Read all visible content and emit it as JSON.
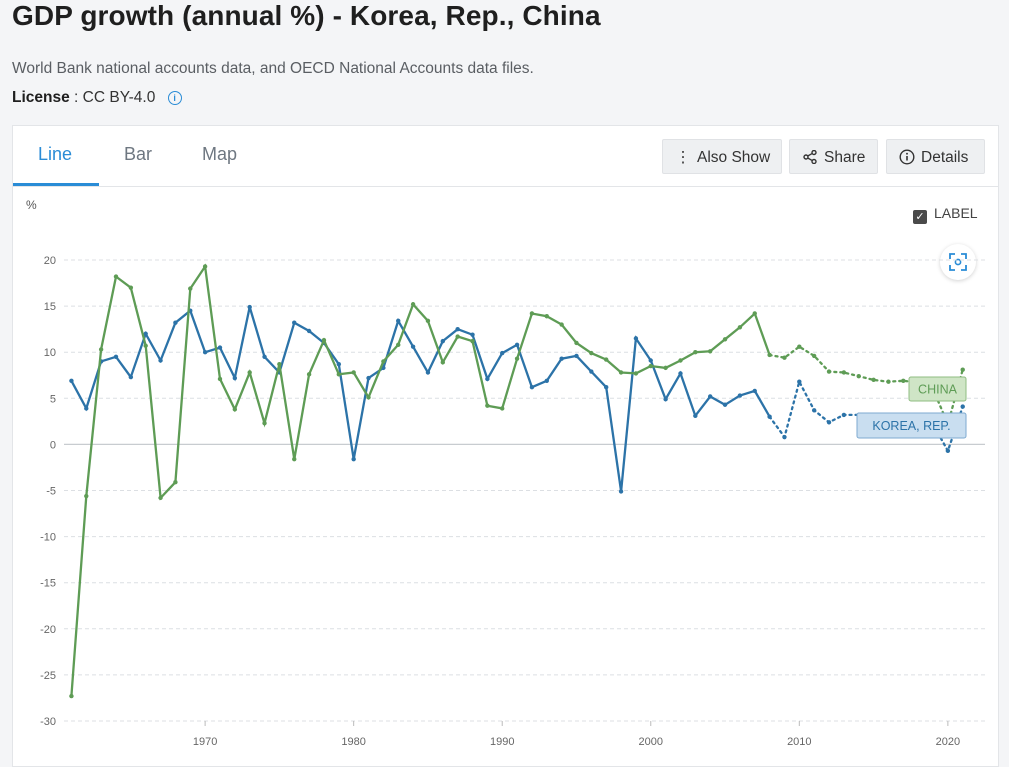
{
  "header": {
    "title": "GDP growth (annual %) - Korea, Rep., China",
    "subtitle": "World Bank national accounts data, and OECD National Accounts data files.",
    "license_label": "License",
    "license_value": ": CC BY-4.0"
  },
  "tabs": [
    {
      "label": "Line",
      "active": true
    },
    {
      "label": "Bar",
      "active": false
    },
    {
      "label": "Map",
      "active": false
    }
  ],
  "toolbar": {
    "also_show": "Also Show",
    "share": "Share",
    "details": "Details",
    "label_toggle": "LABEL",
    "label_checked": true
  },
  "icons": [
    "vertical-dots-icon",
    "share-icon",
    "info-circle-icon",
    "checkbox-icon",
    "zoom-fit-icon"
  ],
  "colors": {
    "accent": "#2a8cd6",
    "korea": "#2c73a8",
    "china": "#5e9c55"
  },
  "chart_data": {
    "type": "line",
    "ylabel": "%",
    "ylim": [
      -30,
      20
    ],
    "xlim": [
      1960.5,
      2022.5
    ],
    "yticks": [
      20,
      15,
      10,
      5,
      0,
      -5,
      -10,
      -15,
      -20,
      -25,
      -30
    ],
    "xticks": [
      1970,
      1980,
      1990,
      2000,
      2010,
      2020
    ],
    "grid": true,
    "series": [
      {
        "name": "KOREA, REP.",
        "x": [
          1961,
          1962,
          1963,
          1964,
          1965,
          1966,
          1967,
          1968,
          1969,
          1970,
          1971,
          1972,
          1973,
          1974,
          1975,
          1976,
          1977,
          1978,
          1979,
          1980,
          1981,
          1982,
          1983,
          1984,
          1985,
          1986,
          1987,
          1988,
          1989,
          1990,
          1991,
          1992,
          1993,
          1994,
          1995,
          1996,
          1997,
          1998,
          1999,
          2000,
          2001,
          2002,
          2003,
          2004,
          2005,
          2006,
          2007,
          2008,
          2009,
          2010,
          2011,
          2012,
          2013,
          2014,
          2015,
          2016,
          2017,
          2018,
          2019,
          2020,
          2021
        ],
        "values": [
          6.9,
          3.9,
          9.0,
          9.5,
          7.3,
          12.0,
          9.1,
          13.2,
          14.5,
          10.0,
          10.5,
          7.2,
          14.9,
          9.5,
          7.8,
          13.2,
          12.3,
          11.0,
          8.7,
          -1.6,
          7.2,
          8.3,
          13.4,
          10.6,
          7.8,
          11.2,
          12.5,
          11.9,
          7.1,
          9.9,
          10.8,
          6.2,
          6.9,
          9.3,
          9.6,
          7.9,
          6.2,
          -5.1,
          11.5,
          9.1,
          4.9,
          7.7,
          3.1,
          5.2,
          4.3,
          5.3,
          5.8,
          3.0,
          0.8,
          6.8,
          3.7,
          2.4,
          3.2,
          3.2,
          2.8,
          2.9,
          3.2,
          2.9,
          2.2,
          -0.7,
          4.1
        ]
      },
      {
        "name": "CHINA",
        "x": [
          1961,
          1962,
          1963,
          1964,
          1965,
          1966,
          1967,
          1968,
          1969,
          1970,
          1971,
          1972,
          1973,
          1974,
          1975,
          1976,
          1977,
          1978,
          1979,
          1980,
          1981,
          1982,
          1983,
          1984,
          1985,
          1986,
          1987,
          1988,
          1989,
          1990,
          1991,
          1992,
          1993,
          1994,
          1995,
          1996,
          1997,
          1998,
          1999,
          2000,
          2001,
          2002,
          2003,
          2004,
          2005,
          2006,
          2007,
          2008,
          2009,
          2010,
          2011,
          2012,
          2013,
          2014,
          2015,
          2016,
          2017,
          2018,
          2019,
          2020,
          2021
        ],
        "values": [
          -27.3,
          -5.6,
          10.3,
          18.2,
          17.0,
          10.7,
          -5.8,
          -4.1,
          16.9,
          19.3,
          7.1,
          3.8,
          7.8,
          2.3,
          8.7,
          -1.6,
          7.6,
          11.3,
          7.6,
          7.8,
          5.1,
          9.0,
          10.8,
          15.2,
          13.4,
          8.9,
          11.7,
          11.2,
          4.2,
          3.9,
          9.3,
          14.2,
          13.9,
          13.0,
          11.0,
          9.9,
          9.2,
          7.8,
          7.7,
          8.5,
          8.3,
          9.1,
          10.0,
          10.1,
          11.4,
          12.7,
          14.2,
          9.7,
          9.4,
          10.6,
          9.6,
          7.9,
          7.8,
          7.4,
          7.0,
          6.8,
          6.9,
          6.7,
          6.0,
          2.2,
          8.1
        ]
      }
    ],
    "annotations": [
      "CHINA",
      "KOREA, REP."
    ]
  }
}
